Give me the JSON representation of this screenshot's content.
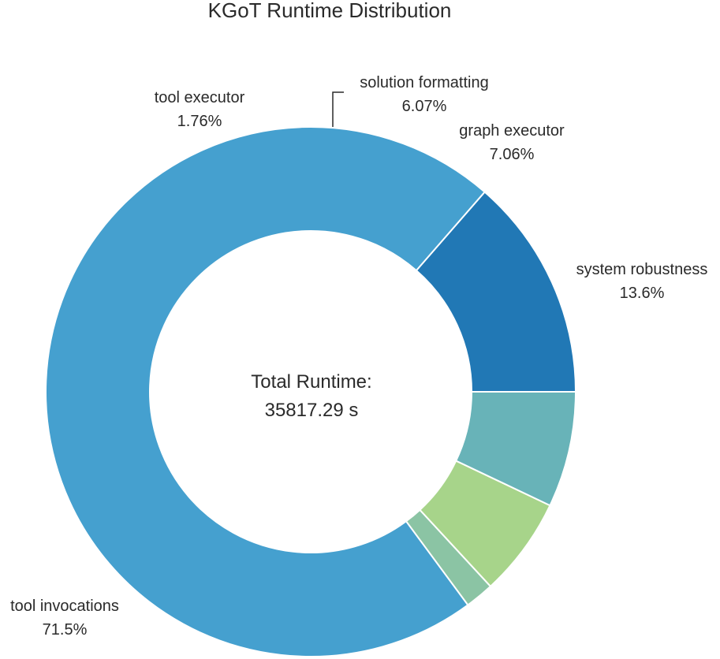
{
  "chart_data": {
    "type": "pie",
    "title": "KGoT Runtime Distribution",
    "center_label": "Total Runtime:",
    "center_value": "35817.29 s",
    "slices": [
      {
        "label": "system robustness",
        "percent_label": "13.6%",
        "value": 13.6,
        "color": "#2178b5"
      },
      {
        "label": "tool invocations",
        "percent_label": "71.5%",
        "value": 71.5,
        "color": "#45a0cf"
      },
      {
        "label": "tool executor",
        "percent_label": "1.76%",
        "value": 1.76,
        "color": "#8bc4a4"
      },
      {
        "label": "solution formatting",
        "percent_label": "6.07%",
        "value": 6.07,
        "color": "#a7d48a"
      },
      {
        "label": "graph executor",
        "percent_label": "7.06%",
        "value": 7.06,
        "color": "#68b3b8"
      }
    ]
  }
}
